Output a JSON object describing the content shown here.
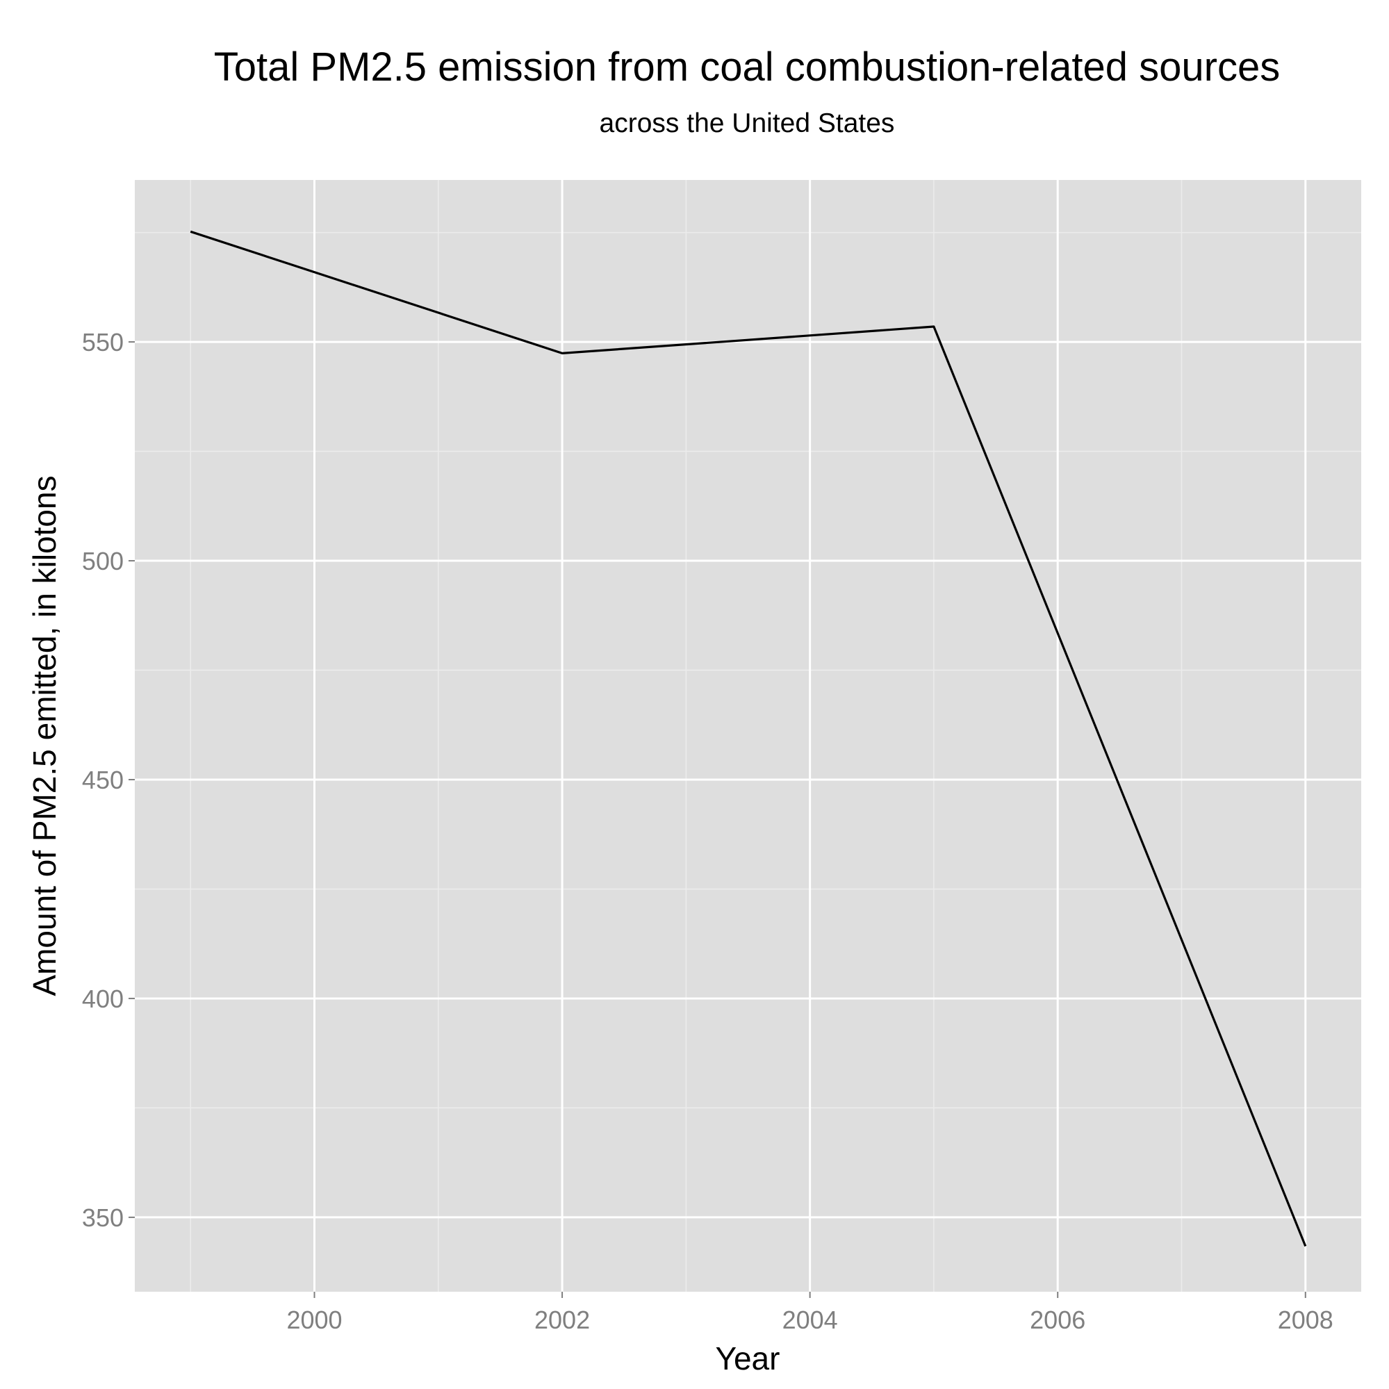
{
  "chart_data": {
    "type": "line",
    "title": "Total PM2.5 emission from coal combustion-related sources",
    "subtitle": "across the United States",
    "xlabel": "Year",
    "ylabel": "Amount of PM2.5 emitted, in kilotons",
    "x": [
      1999,
      2002,
      2005,
      2008
    ],
    "series": [
      {
        "values": [
          575.2,
          547.4,
          553.5,
          343.4
        ]
      }
    ],
    "xlim": [
      1998.55,
      2008.45
    ],
    "ylim": [
      333,
      587
    ],
    "x_ticks": [
      2000,
      2002,
      2004,
      2006,
      2008
    ],
    "x_tick_labels": [
      "2000",
      "2002",
      "2004",
      "2006",
      "2008"
    ],
    "y_ticks": [
      350,
      400,
      450,
      500,
      550
    ],
    "y_tick_labels": [
      "350",
      "400",
      "450",
      "500",
      "550"
    ],
    "grid": true,
    "legend": "none",
    "colors": {
      "panel": "#dedede",
      "grid_major": "#ffffff",
      "grid_minor": "#ececec",
      "line": "#000000",
      "tick_text": "#7f7f7f",
      "text": "#000000"
    }
  }
}
